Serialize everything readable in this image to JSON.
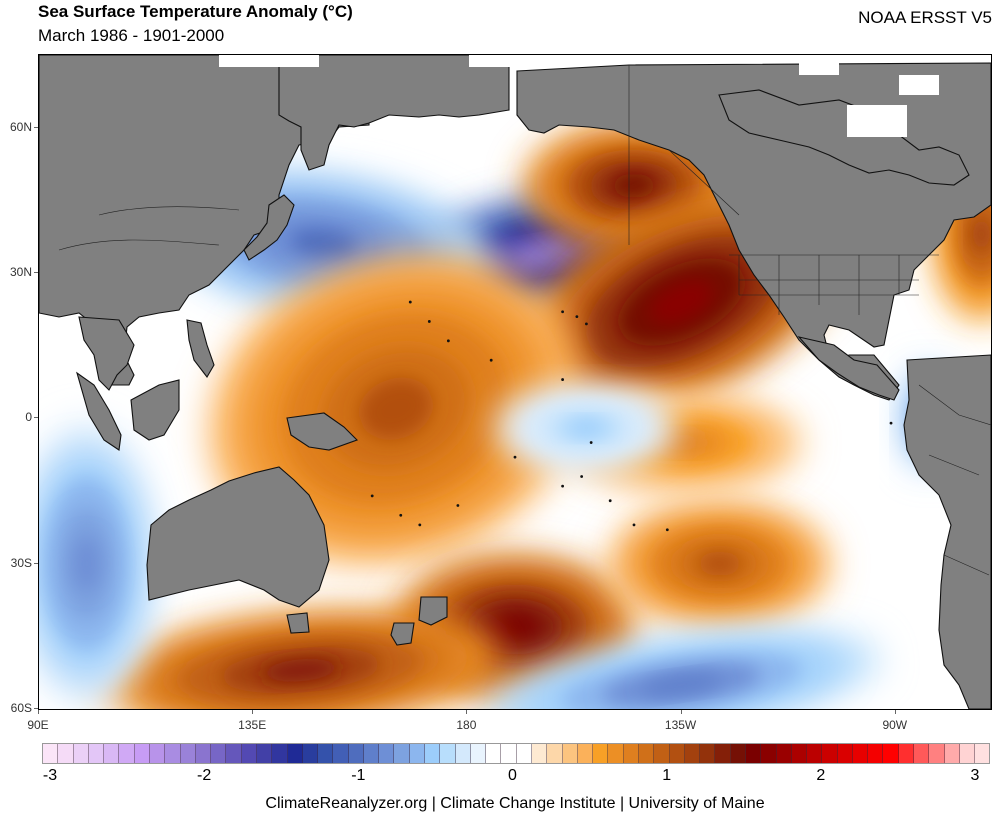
{
  "header": {
    "title": "Sea Surface Temperature Anomaly (°C)",
    "subtitle": "March 1986 - 1901-2000",
    "dataset": "NOAA ERSST V5"
  },
  "map": {
    "projection": "equirectangular",
    "lon_range": [
      90,
      290
    ],
    "lat_range": [
      -60,
      75
    ],
    "lat_ticks": [
      {
        "label": "60N",
        "value": 60
      },
      {
        "label": "30N",
        "value": 30
      },
      {
        "label": "0",
        "value": 0
      },
      {
        "label": "30S",
        "value": -30
      },
      {
        "label": "60S",
        "value": -60
      }
    ],
    "lon_ticks": [
      {
        "label": "90E",
        "value": 90
      },
      {
        "label": "135E",
        "value": 135
      },
      {
        "label": "180",
        "value": 180
      },
      {
        "label": "135W",
        "value": 225
      },
      {
        "label": "90W",
        "value": 270
      }
    ],
    "land_color": "#808080",
    "anomaly_features": [
      {
        "name": "north-pacific-cold-core",
        "lon": 196,
        "lat": 34,
        "anomaly": -2.0
      },
      {
        "name": "northwest-pacific-cool",
        "lon": 150,
        "lat": 36,
        "anomaly": -1.0
      },
      {
        "name": "gulf-of-alaska-warm",
        "lon": 215,
        "lat": 48,
        "anomaly": 1.4
      },
      {
        "name": "northeast-pacific-warm",
        "lon": 225,
        "lat": 24,
        "anomaly": 1.6
      },
      {
        "name": "equatorial-west-pacific-warm",
        "lon": 165,
        "lat": 2,
        "anomaly": 1.0
      },
      {
        "name": "tasman-sea-warm",
        "lon": 190,
        "lat": -43,
        "anomaly": 1.5
      },
      {
        "name": "southern-ocean-warm",
        "lon": 145,
        "lat": -52,
        "anomaly": 1.3
      },
      {
        "name": "south-pacific-warm",
        "lon": 233,
        "lat": -30,
        "anomaly": 1.0
      },
      {
        "name": "east-equatorial-warm",
        "lon": 225,
        "lat": -5,
        "anomaly": 0.7
      },
      {
        "name": "central-pacific-cool",
        "lon": 205,
        "lat": -2,
        "anomaly": -0.5
      },
      {
        "name": "south-pacific-cool",
        "lon": 225,
        "lat": -55,
        "anomaly": -0.9
      },
      {
        "name": "indian-ocean-cool",
        "lon": 100,
        "lat": -30,
        "anomaly": -0.8
      },
      {
        "name": "peru-coast-cool",
        "lon": 277,
        "lat": 0,
        "anomaly": -1.0
      },
      {
        "name": "atlantic-coast-warm",
        "lon": 288,
        "lat": 38,
        "anomaly": 1.1
      }
    ]
  },
  "colorbar": {
    "min": -3,
    "max": 3,
    "ticks": [
      "-3",
      "-2",
      "-1",
      "0",
      "1",
      "2",
      "3"
    ],
    "tick_values": [
      -3,
      -2,
      -1,
      0,
      1,
      2,
      3
    ],
    "colors": [
      "#fbe5f8",
      "#f5dbf7",
      "#ebd0f7",
      "#e3c6f7",
      "#d9b8f5",
      "#d0a9f5",
      "#c79cf5",
      "#b893ea",
      "#a98ce2",
      "#9a82d9",
      "#8a74cf",
      "#7766c6",
      "#6557bb",
      "#5349b3",
      "#4240a7",
      "#31369f",
      "#1f2a96",
      "#293d9e",
      "#3452ab",
      "#425fb6",
      "#4f6dbe",
      "#5f7fcb",
      "#6e8fd6",
      "#7da2e0",
      "#8cb6ee",
      "#9ccdfb",
      "#b8defc",
      "#d4e9fc",
      "#e9f4fe",
      "#ffffff",
      "#ffffff",
      "#ffffff",
      "#feead2",
      "#fdd7a9",
      "#fcc47f",
      "#fbb15a",
      "#f8a026",
      "#ec8f25",
      "#df7f1f",
      "#d07019",
      "#c16015",
      "#b25011",
      "#a3410e",
      "#93320b",
      "#841f08",
      "#751005",
      "#7a0000",
      "#8a0000",
      "#9a0000",
      "#ab0000",
      "#bb0000",
      "#cb0000",
      "#da0000",
      "#e80000",
      "#f40000",
      "#ff0000",
      "#ff2f2f",
      "#ff5959",
      "#ff8080",
      "#ffaaaa",
      "#ffd3d3",
      "#ffe0e0"
    ]
  },
  "footer": {
    "credit": "ClimateReanalyzer.org | Climate Change Institute | University of Maine"
  }
}
